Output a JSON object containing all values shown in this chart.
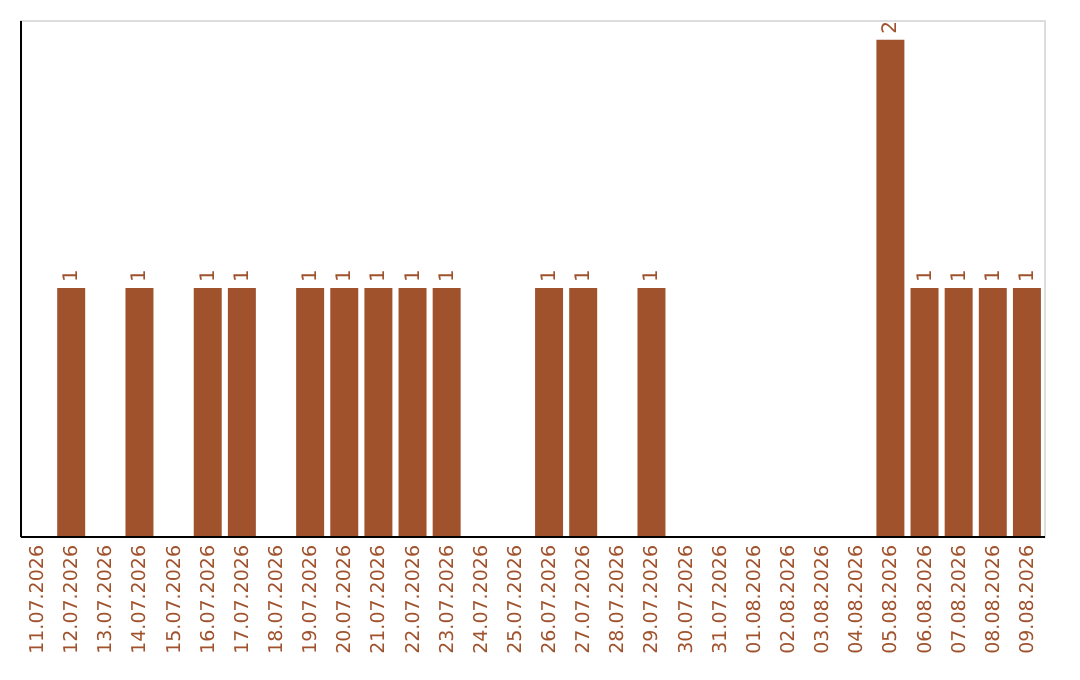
{
  "chart_data": {
    "type": "bar",
    "categories": [
      "11.07.2026",
      "12.07.2026",
      "13.07.2026",
      "14.07.2026",
      "15.07.2026",
      "16.07.2026",
      "17.07.2026",
      "18.07.2026",
      "19.07.2026",
      "20.07.2026",
      "21.07.2026",
      "22.07.2026",
      "23.07.2026",
      "24.07.2026",
      "25.07.2026",
      "26.07.2026",
      "27.07.2026",
      "28.07.2026",
      "29.07.2026",
      "30.07.2026",
      "31.07.2026",
      "01.08.2026",
      "02.08.2026",
      "03.08.2026",
      "04.08.2026",
      "05.08.2026",
      "06.08.2026",
      "07.08.2026",
      "08.08.2026",
      "09.08.2026"
    ],
    "values": [
      0,
      1,
      0,
      1,
      0,
      1,
      1,
      0,
      1,
      1,
      1,
      1,
      1,
      0,
      0,
      1,
      1,
      0,
      1,
      0,
      0,
      0,
      0,
      0,
      0,
      2,
      1,
      1,
      1,
      1
    ],
    "value_labels": [
      null,
      "1",
      null,
      "1",
      null,
      "1",
      "1",
      null,
      "1",
      "1",
      "1",
      "1",
      "1",
      null,
      null,
      "1",
      "1",
      null,
      "1",
      null,
      null,
      null,
      null,
      null,
      null,
      "2",
      "1",
      "1",
      "1",
      "1"
    ],
    "color": "#a0522d",
    "ylim": [
      0,
      2.08
    ],
    "tick_labels": "x",
    "grid": false
  }
}
